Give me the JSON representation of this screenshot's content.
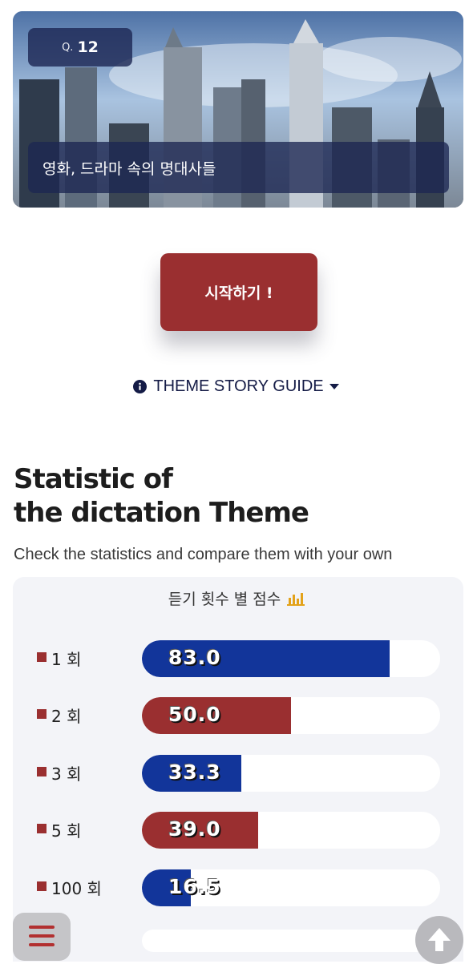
{
  "hero": {
    "question_prefix": "Q.",
    "question_number": "12",
    "caption": "영화, 드라마 속의 명대사들"
  },
  "start_button": {
    "label": "시작하기 !"
  },
  "guide": {
    "label": "THEME STORY GUIDE",
    "icon": "info-circle-icon",
    "caret_icon": "caret-down-icon"
  },
  "statistics": {
    "title_line1": "Statistic of",
    "title_line2": "the dictation Theme",
    "subtitle": "Check the statistics and compare them with your own",
    "panel_title": "듣기 횟수 별 점수",
    "panel_icon": "bar-chart-icon",
    "rows": [
      {
        "label": "1 회",
        "value": "83.0",
        "percent": 83.0,
        "color": "#12359a"
      },
      {
        "label": "2 회",
        "value": "50.0",
        "percent": 50.0,
        "color": "#9a2f30"
      },
      {
        "label": "3 회",
        "value": "33.3",
        "percent": 33.3,
        "color": "#12359a"
      },
      {
        "label": "5 회",
        "value": "39.0",
        "percent": 39.0,
        "color": "#9a2f30"
      },
      {
        "label": "100 회",
        "value": "16.5",
        "percent": 16.5,
        "color": "#12359a"
      }
    ]
  },
  "colors": {
    "accent_red": "#9a2f30",
    "accent_blue": "#12359a",
    "navy_text": "#141b46"
  },
  "controls": {
    "menu_icon": "hamburger-menu-icon",
    "top_icon": "arrow-up-icon"
  }
}
